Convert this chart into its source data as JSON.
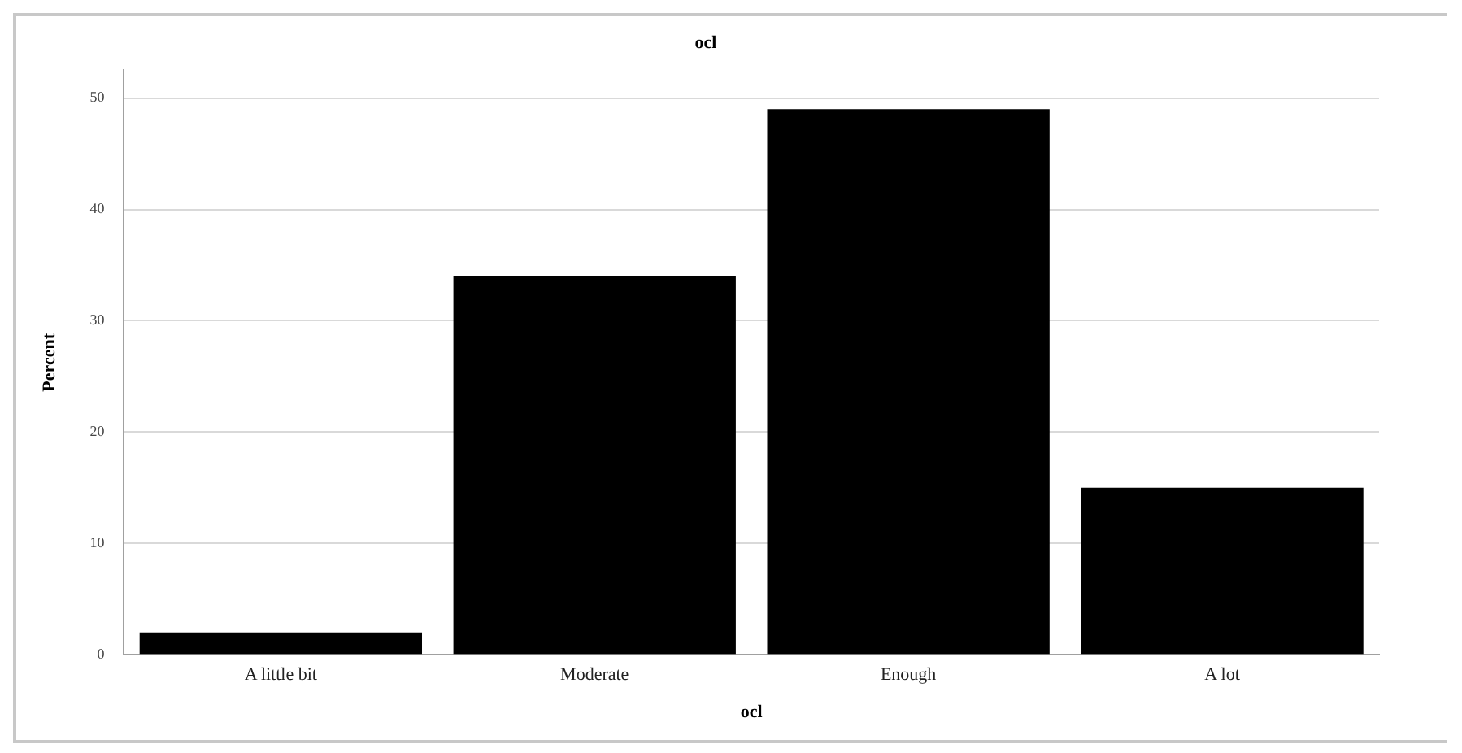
{
  "chart_data": {
    "type": "bar",
    "title": "ocl",
    "xlabel": "ocl",
    "ylabel": "Percent",
    "categories": [
      "A little bit",
      "Moderate",
      "Enough",
      "A lot"
    ],
    "values": [
      2,
      34,
      49,
      15
    ],
    "color": "#000000",
    "ylim": [
      0,
      52.5
    ],
    "yticks": [
      0,
      10,
      20,
      30,
      40,
      50
    ],
    "grid": "y",
    "legend": false
  }
}
